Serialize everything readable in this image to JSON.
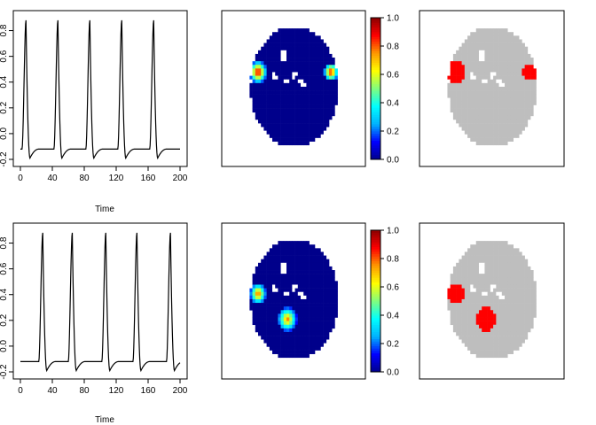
{
  "chart_data": [
    {
      "type": "line",
      "title": "",
      "xlabel": "Time",
      "ylabel": "",
      "xlim": [
        0,
        200
      ],
      "ylim": [
        -0.2,
        0.9
      ],
      "xticks": [
        "0",
        "40",
        "80",
        "120",
        "160",
        "200"
      ],
      "yticks": [
        "-0.2",
        "0.0",
        "0.2",
        "0.4",
        "0.6",
        "0.8"
      ],
      "series": [
        {
          "peaks_at": [
            7,
            47,
            87,
            127,
            167
          ],
          "peak_value": 0.88,
          "trough_value": -0.19,
          "baseline_value": -0.12
        }
      ]
    },
    {
      "type": "heatmap",
      "title": "",
      "zlim": [
        0,
        1
      ],
      "colorbar_ticks": [
        "0.0",
        "0.2",
        "0.4",
        "0.6",
        "0.8",
        "1.0"
      ],
      "colorscale": [
        "#00008B",
        "#0000FF",
        "#00B2FF",
        "#00FFFF",
        "#7FFF7F",
        "#FFFF00",
        "#FF9900",
        "#FF0000",
        "#8B0000"
      ],
      "background_value": 0,
      "activations": [
        {
          "region": "left",
          "peak": 1.0
        },
        {
          "region": "right",
          "peak": 0.95
        }
      ]
    },
    {
      "type": "heatmap",
      "title": "",
      "colors": {
        "brain": "#BEBEBE",
        "active": "#FF0000"
      },
      "active_regions": [
        "left",
        "right"
      ]
    },
    {
      "type": "line",
      "title": "",
      "xlabel": "Time",
      "ylabel": "",
      "xlim": [
        0,
        200
      ],
      "ylim": [
        -0.2,
        0.9
      ],
      "xticks": [
        "0",
        "40",
        "80",
        "120",
        "160",
        "200"
      ],
      "yticks": [
        "-0.2",
        "0.0",
        "0.2",
        "0.4",
        "0.6",
        "0.8"
      ],
      "series": [
        {
          "peaks_at": [
            28,
            65,
            107,
            146,
            188
          ],
          "peak_value": 0.88,
          "trough_value": -0.19,
          "baseline_value": -0.12
        }
      ]
    },
    {
      "type": "heatmap",
      "title": "",
      "zlim": [
        0,
        1
      ],
      "colorbar_ticks": [
        "0.0",
        "0.2",
        "0.4",
        "0.6",
        "0.8",
        "1.0"
      ],
      "colorscale": [
        "#00008B",
        "#0000FF",
        "#00B2FF",
        "#00FFFF",
        "#7FFF7F",
        "#FFFF00",
        "#FF9900",
        "#FF0000",
        "#8B0000"
      ],
      "background_value": 0,
      "activations": [
        {
          "region": "left-lower",
          "peak": 0.85
        },
        {
          "region": "center-bottom",
          "peak": 0.8
        }
      ]
    },
    {
      "type": "heatmap",
      "title": "",
      "colors": {
        "brain": "#BEBEBE",
        "active": "#FF0000"
      },
      "active_regions": [
        "left-lower",
        "center-bottom"
      ]
    }
  ]
}
